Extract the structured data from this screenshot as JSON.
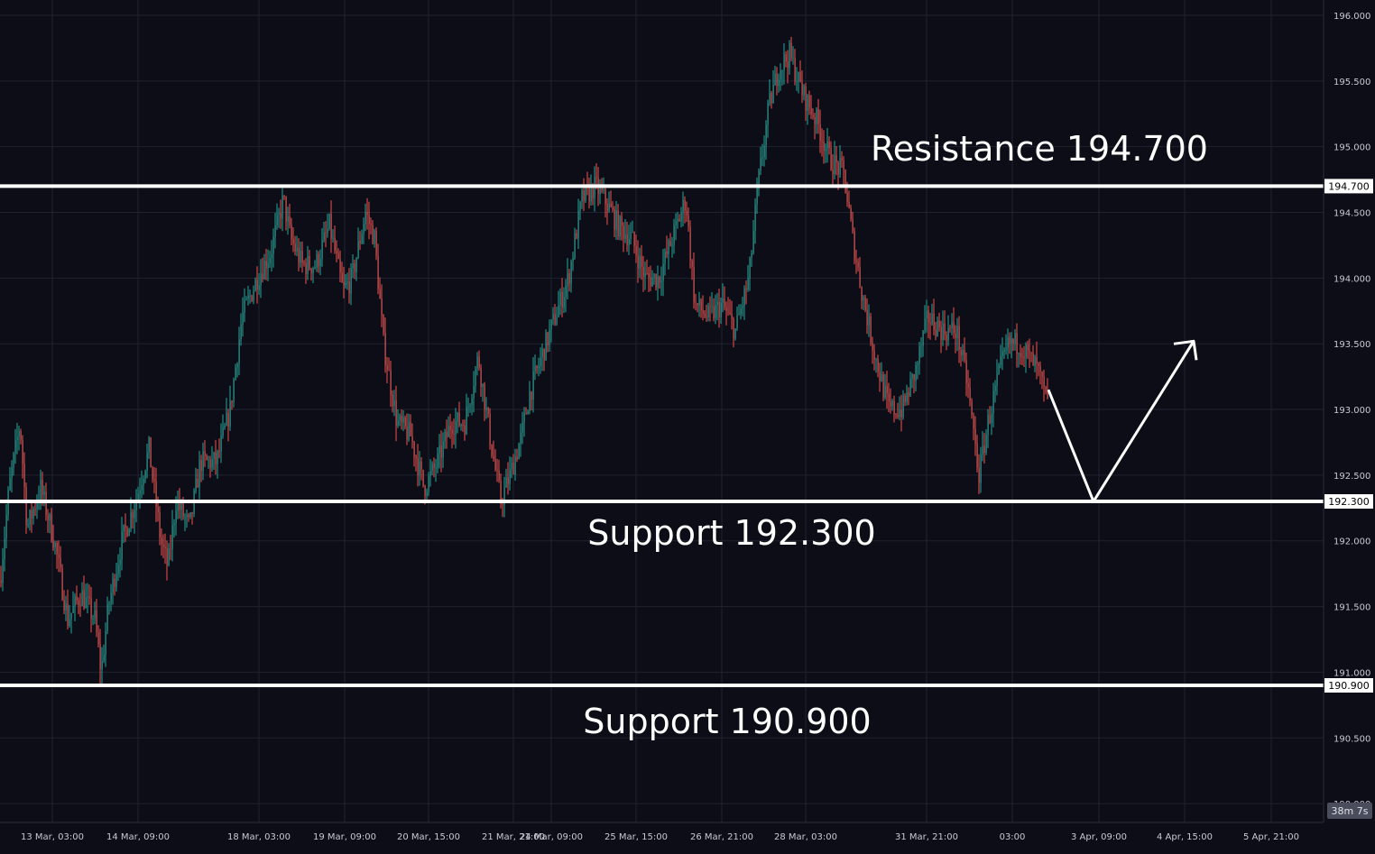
{
  "chart_data": {
    "type": "candlestick",
    "title": "",
    "xlabel": "",
    "ylabel": "",
    "ylim": [
      189.5,
      196.05
    ],
    "y_ticks": [
      196.0,
      195.5,
      195.0,
      194.5,
      194.0,
      193.5,
      193.0,
      192.5,
      192.0,
      191.5,
      191.0,
      190.5,
      190.0
    ],
    "y_tick_labels": [
      "196.000",
      "195.500",
      "195.000",
      "194.500",
      "194.000",
      "193.500",
      "193.000",
      "192.500",
      "192.000",
      "191.500",
      "191.000",
      "190.500",
      "190.000"
    ],
    "x_tick_labels": [
      "13 Mar, 03:00",
      "14 Mar, 09:00",
      "18 Mar, 03:00",
      "19 Mar, 09:00",
      "20 Mar, 15:00",
      "21 Mar, 21:00",
      "24 Mar, 09:00",
      "25 Mar, 15:00",
      "26 Mar, 21:00",
      "28 Mar, 03:00",
      "31 Mar, 21:00",
      "03:00",
      "3 Apr, 09:00",
      "4 Apr, 15:00",
      "5 Apr, 21:00"
    ],
    "grid": true,
    "price_path": [
      [
        0,
        191.7
      ],
      [
        10,
        192.4
      ],
      [
        22,
        192.9
      ],
      [
        30,
        192.1
      ],
      [
        45,
        192.4
      ],
      [
        60,
        192.0
      ],
      [
        75,
        191.4
      ],
      [
        90,
        191.6
      ],
      [
        105,
        191.4
      ],
      [
        112,
        191.0
      ],
      [
        120,
        191.5
      ],
      [
        135,
        192.0
      ],
      [
        150,
        192.3
      ],
      [
        165,
        192.7
      ],
      [
        178,
        192.0
      ],
      [
        186,
        191.8
      ],
      [
        195,
        192.3
      ],
      [
        210,
        192.1
      ],
      [
        222,
        192.6
      ],
      [
        240,
        192.6
      ],
      [
        255,
        193.0
      ],
      [
        268,
        193.7
      ],
      [
        285,
        194.0
      ],
      [
        300,
        194.2
      ],
      [
        314,
        194.6
      ],
      [
        322,
        194.3
      ],
      [
        335,
        194.1
      ],
      [
        350,
        194.1
      ],
      [
        365,
        194.4
      ],
      [
        380,
        193.9
      ],
      [
        390,
        194.0
      ],
      [
        405,
        194.5
      ],
      [
        415,
        194.3
      ],
      [
        425,
        193.5
      ],
      [
        440,
        192.9
      ],
      [
        455,
        192.8
      ],
      [
        470,
        192.4
      ],
      [
        485,
        192.6
      ],
      [
        500,
        192.9
      ],
      [
        515,
        192.9
      ],
      [
        530,
        193.4
      ],
      [
        545,
        192.7
      ],
      [
        555,
        192.3
      ],
      [
        565,
        192.5
      ],
      [
        578,
        192.8
      ],
      [
        586,
        193.1
      ],
      [
        600,
        193.4
      ],
      [
        615,
        193.7
      ],
      [
        630,
        194.0
      ],
      [
        645,
        194.6
      ],
      [
        660,
        194.7
      ],
      [
        670,
        194.6
      ],
      [
        685,
        194.4
      ],
      [
        700,
        194.3
      ],
      [
        715,
        194.0
      ],
      [
        730,
        194.0
      ],
      [
        745,
        194.3
      ],
      [
        760,
        194.6
      ],
      [
        770,
        193.8
      ],
      [
        785,
        193.7
      ],
      [
        800,
        193.8
      ],
      [
        815,
        193.6
      ],
      [
        830,
        194.0
      ],
      [
        840,
        194.7
      ],
      [
        852,
        195.3
      ],
      [
        863,
        195.6
      ],
      [
        875,
        195.7
      ],
      [
        890,
        195.4
      ],
      [
        905,
        195.2
      ],
      [
        920,
        194.9
      ],
      [
        935,
        194.8
      ],
      [
        945,
        194.3
      ],
      [
        955,
        193.9
      ],
      [
        970,
        193.4
      ],
      [
        985,
        193.0
      ],
      [
        1000,
        193.0
      ],
      [
        1015,
        193.3
      ],
      [
        1028,
        193.7
      ],
      [
        1045,
        193.6
      ],
      [
        1060,
        193.6
      ],
      [
        1072,
        193.2
      ],
      [
        1085,
        192.5
      ],
      [
        1095,
        192.9
      ],
      [
        1108,
        193.3
      ],
      [
        1118,
        193.5
      ],
      [
        1130,
        193.5
      ],
      [
        1140,
        193.4
      ],
      [
        1150,
        193.3
      ],
      [
        1162,
        193.0
      ]
    ],
    "projection": [
      [
        1162,
        193.15
      ],
      [
        1212,
        192.3
      ],
      [
        1323,
        193.52
      ]
    ],
    "levels": [
      {
        "value": 194.7,
        "badge": "194.700"
      },
      {
        "value": 192.3,
        "badge": "192.300"
      },
      {
        "value": 190.9,
        "badge": "190.900"
      }
    ],
    "annotations": [
      "Resistance 194.700",
      "Support 192.300",
      "Support 190.900"
    ],
    "timer": "38m 7s",
    "colors": {
      "background": "#0c0d16",
      "grid": "#1f2230",
      "up": "#26a69a",
      "down": "#ef5350",
      "level_line": "#ffffff",
      "axis_text": "#c8cad4"
    }
  }
}
